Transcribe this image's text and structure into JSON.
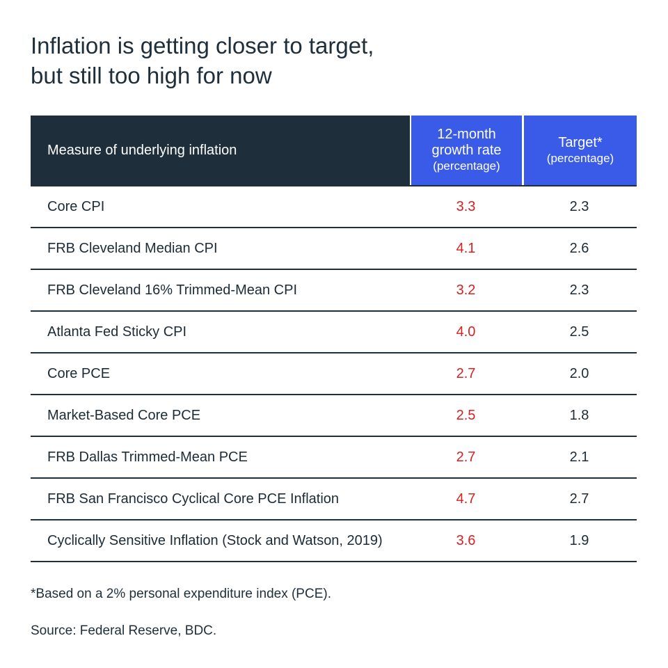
{
  "chart_data": {
    "type": "table",
    "title": "Inflation is getting closer to target, but still too high for now",
    "title_lines": [
      "Inflation is getting closer to target,",
      "but still too high for now"
    ],
    "columns": [
      {
        "label": "Measure of underlying inflation",
        "sub": ""
      },
      {
        "label_lines": [
          "12-month",
          "growth rate"
        ],
        "sub": "(percentage)"
      },
      {
        "label_lines": [
          "Target*"
        ],
        "sub": "(percentage)"
      }
    ],
    "rows": [
      {
        "measure": "Core CPI",
        "growth": "3.3",
        "target": "2.3"
      },
      {
        "measure": "FRB Cleveland Median CPI",
        "growth": "4.1",
        "target": "2.6"
      },
      {
        "measure": "FRB Cleveland 16% Trimmed-Mean CPI",
        "growth": "3.2",
        "target": "2.3"
      },
      {
        "measure": "Atlanta Fed Sticky CPI",
        "growth": "4.0",
        "target": "2.5"
      },
      {
        "measure": "Core PCE",
        "growth": "2.7",
        "target": "2.0"
      },
      {
        "measure": "Market-Based Core PCE",
        "growth": "2.5",
        "target": "1.8"
      },
      {
        "measure": "FRB Dallas Trimmed-Mean PCE",
        "growth": "2.7",
        "target": "2.1"
      },
      {
        "measure": "FRB San Francisco Cyclical Core PCE Inflation",
        "growth": "4.7",
        "target": "2.7"
      },
      {
        "measure": "Cyclically Sensitive Inflation (Stock and Watson, 2019)",
        "growth": "3.6",
        "target": "1.9"
      }
    ],
    "footnote": "*Based on a 2% personal expenditure index (PCE).",
    "source": "Source: Federal Reserve, BDC.",
    "colors": {
      "header_dark": "#1e2f3b",
      "header_blue": "#3a5be8",
      "growth_value": "#d82020",
      "text": "#1c2b36"
    }
  }
}
